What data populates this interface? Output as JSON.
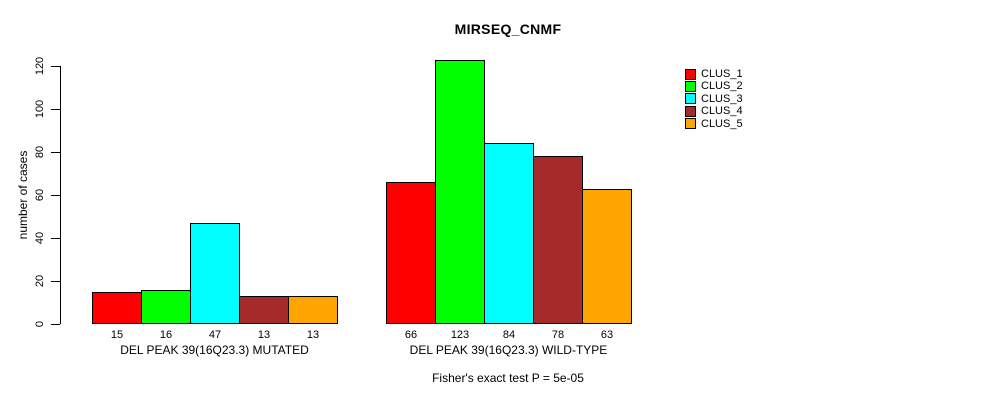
{
  "title": "MIRSEQ_CNMF",
  "y_axis_label": "number of cases",
  "footnote": "Fisher's exact test P = 5e-05",
  "chart_data": {
    "type": "bar",
    "title": "MIRSEQ_CNMF",
    "xlabel": "",
    "ylabel": "number of cases",
    "ylim": [
      0,
      120
    ],
    "yticks": [
      0,
      20,
      40,
      60,
      80,
      100,
      120
    ],
    "grid": false,
    "legend_position": "right-outside",
    "bar_value_labels": true,
    "categories": [
      "DEL PEAK 39(16Q23.3) MUTATED",
      "DEL PEAK 39(16Q23.3) WILD-TYPE"
    ],
    "series": [
      {
        "name": "CLUS_1",
        "color": "#FF0000",
        "values": [
          15,
          66
        ]
      },
      {
        "name": "CLUS_2",
        "color": "#00FF00",
        "values": [
          16,
          123
        ]
      },
      {
        "name": "CLUS_3",
        "color": "#00FFFF",
        "values": [
          47,
          84
        ]
      },
      {
        "name": "CLUS_4",
        "color": "#A52A2A",
        "values": [
          13,
          78
        ]
      },
      {
        "name": "CLUS_5",
        "color": "#FFA500",
        "values": [
          13,
          63
        ]
      }
    ],
    "annotation": "Fisher's exact test P = 5e-05"
  }
}
